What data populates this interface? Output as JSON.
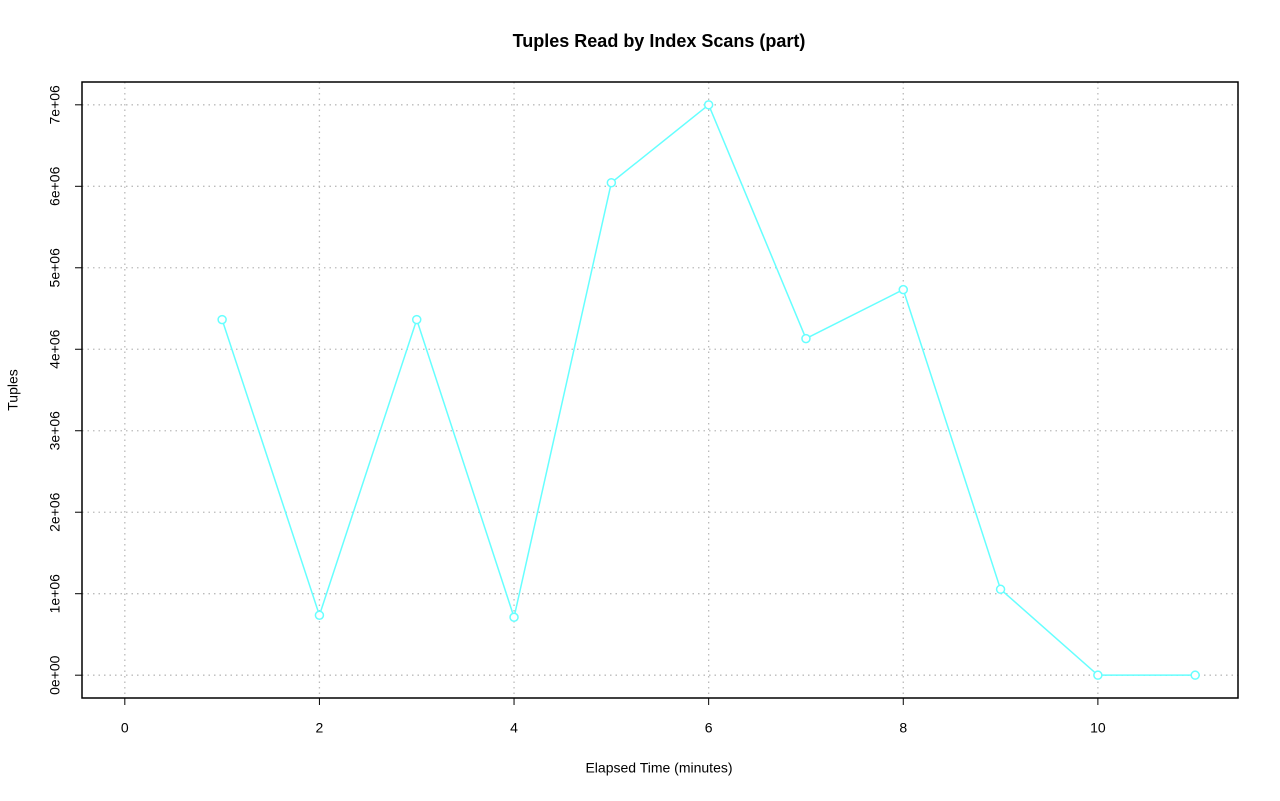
{
  "chart_data": {
    "type": "line",
    "title": "Tuples Read by Index Scans (part)",
    "x_label": "Elapsed Time (minutes)",
    "y_label": "Tuples",
    "x": [
      1,
      2,
      3,
      4,
      5,
      6,
      7,
      8,
      9,
      10,
      11
    ],
    "series": [
      {
        "name": "Tuples",
        "color": "#66ffff",
        "values": [
          4364000,
          736000,
          4364000,
          711000,
          6044000,
          7000000,
          4131000,
          4732000,
          1054000,
          0,
          0
        ]
      }
    ],
    "xlim": [
      -0.44,
      11.44
    ],
    "xticks": [
      0,
      2,
      4,
      6,
      8,
      10
    ],
    "ylim": [
      -280000,
      7280000
    ],
    "yticks": [
      {
        "value": 0,
        "label": "0e+00"
      },
      {
        "value": 1000000,
        "label": "1e+06"
      },
      {
        "value": 2000000,
        "label": "2e+06"
      },
      {
        "value": 3000000,
        "label": "3e+06"
      },
      {
        "value": 4000000,
        "label": "4e+06"
      },
      {
        "value": 5000000,
        "label": "5e+06"
      },
      {
        "value": 6000000,
        "label": "6e+06"
      },
      {
        "value": 7000000,
        "label": "7e+06"
      }
    ],
    "grid": true
  }
}
